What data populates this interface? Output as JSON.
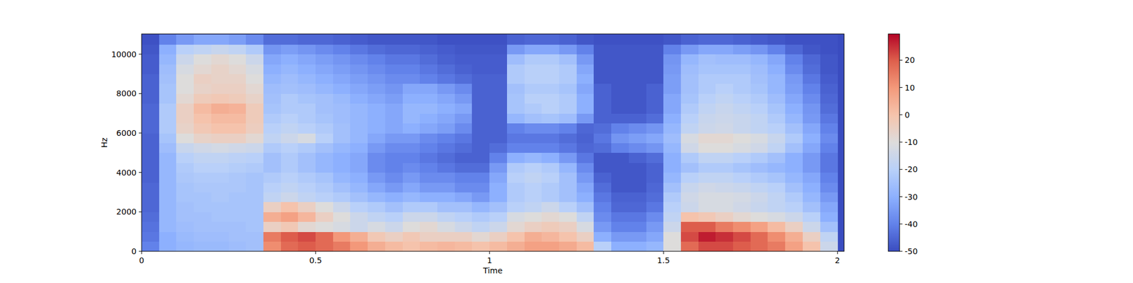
{
  "chart_data": {
    "type": "heatmap",
    "x_label": "Time",
    "y_label": "Hz",
    "x": [
      0.025,
      0.075,
      0.125,
      0.175,
      0.225,
      0.275,
      0.325,
      0.375,
      0.425,
      0.475,
      0.525,
      0.575,
      0.625,
      0.675,
      0.725,
      0.775,
      0.825,
      0.875,
      0.925,
      0.975,
      1.025,
      1.075,
      1.125,
      1.175,
      1.225,
      1.275,
      1.325,
      1.375,
      1.425,
      1.475,
      1.525,
      1.575,
      1.625,
      1.675,
      1.725,
      1.775,
      1.825,
      1.875,
      1.925,
      1.975
    ],
    "y": [
      250,
      750,
      1250,
      1750,
      2250,
      2750,
      3250,
      3750,
      4250,
      4750,
      5250,
      5750,
      6250,
      6750,
      7250,
      7750,
      8250,
      8750,
      9250,
      9750,
      10250,
      10750
    ],
    "values": [
      [
        -40,
        -30,
        -28,
        -27,
        -27,
        -26,
        -25,
        12,
        18,
        20,
        18,
        15,
        10,
        5,
        2,
        0,
        2,
        3,
        2,
        0,
        2,
        5,
        8,
        8,
        6,
        2,
        -20,
        -30,
        -30,
        -28,
        -10,
        18,
        22,
        22,
        20,
        18,
        15,
        8,
        0,
        -15
      ],
      [
        -42,
        -30,
        -27,
        -26,
        -26,
        -25,
        -25,
        15,
        20,
        22,
        18,
        10,
        5,
        -2,
        -5,
        -2,
        -5,
        -5,
        -5,
        -8,
        -5,
        0,
        5,
        3,
        0,
        -5,
        -30,
        -35,
        -35,
        -32,
        -10,
        22,
        27,
        25,
        22,
        18,
        12,
        5,
        -5,
        -18
      ],
      [
        -43,
        -28,
        -26,
        -25,
        -25,
        -25,
        -24,
        -5,
        -2,
        -8,
        -10,
        -12,
        -15,
        -12,
        -15,
        -10,
        -8,
        -12,
        -15,
        -18,
        -15,
        -8,
        -5,
        -3,
        -5,
        -12,
        -35,
        -40,
        -40,
        -35,
        -15,
        20,
        20,
        15,
        12,
        8,
        2,
        -5,
        -15,
        -25
      ],
      [
        -44,
        -28,
        -25,
        -25,
        -24,
        -24,
        -24,
        5,
        8,
        3,
        -5,
        -10,
        -15,
        -18,
        -20,
        -15,
        -15,
        -18,
        -20,
        -22,
        -20,
        -12,
        -10,
        -8,
        -10,
        -18,
        -38,
        -42,
        -42,
        -38,
        -18,
        0,
        -2,
        -5,
        -8,
        -10,
        -12,
        -15,
        -20,
        -30
      ],
      [
        -45,
        -28,
        -25,
        -24,
        -24,
        -24,
        -24,
        -5,
        0,
        -5,
        -10,
        -15,
        -20,
        -22,
        -25,
        -22,
        -22,
        -25,
        -25,
        -28,
        -25,
        -20,
        -18,
        -15,
        -20,
        -25,
        -40,
        -45,
        -45,
        -42,
        -20,
        -15,
        -12,
        -12,
        -14,
        -16,
        -18,
        -20,
        -25,
        -32
      ],
      [
        -45,
        -28,
        -24,
        -24,
        -23,
        -24,
        -24,
        -18,
        -15,
        -18,
        -20,
        -22,
        -25,
        -28,
        -30,
        -28,
        -30,
        -30,
        -32,
        -35,
        -30,
        -22,
        -20,
        -22,
        -25,
        -30,
        -42,
        -46,
        -46,
        -44,
        -22,
        -14,
        -12,
        -12,
        -13,
        -15,
        -18,
        -22,
        -28,
        -35
      ],
      [
        -45,
        -28,
        -24,
        -23,
        -23,
        -23,
        -24,
        -20,
        -18,
        -20,
        -22,
        -25,
        -28,
        -32,
        -35,
        -32,
        -35,
        -35,
        -38,
        -38,
        -30,
        -22,
        -20,
        -22,
        -25,
        -32,
        -44,
        -48,
        -48,
        -45,
        -25,
        -16,
        -14,
        -15,
        -16,
        -18,
        -20,
        -25,
        -30,
        -38
      ],
      [
        -46,
        -28,
        -23,
        -22,
        -22,
        -23,
        -24,
        -22,
        -20,
        -22,
        -24,
        -28,
        -30,
        -35,
        -38,
        -35,
        -38,
        -38,
        -40,
        -40,
        -32,
        -20,
        -18,
        -20,
        -25,
        -35,
        -46,
        -48,
        -48,
        -46,
        -28,
        -20,
        -18,
        -18,
        -20,
        -22,
        -24,
        -28,
        -32,
        -40
      ],
      [
        -46,
        -28,
        -22,
        -20,
        -20,
        -21,
        -22,
        -25,
        -22,
        -25,
        -28,
        -30,
        -32,
        -38,
        -40,
        -38,
        -40,
        -42,
        -44,
        -44,
        -35,
        -22,
        -20,
        -22,
        -28,
        -38,
        -48,
        -48,
        -48,
        -46,
        -30,
        -25,
        -22,
        -22,
        -24,
        -26,
        -28,
        -30,
        -35,
        -42
      ],
      [
        -46,
        -28,
        -20,
        -18,
        -18,
        -19,
        -20,
        -25,
        -22,
        -25,
        -28,
        -30,
        -32,
        -38,
        -40,
        -40,
        -42,
        -44,
        -46,
        -46,
        -40,
        -30,
        -28,
        -30,
        -35,
        -42,
        -48,
        -48,
        -46,
        -44,
        -30,
        -22,
        -18,
        -18,
        -20,
        -22,
        -25,
        -30,
        -35,
        -42
      ],
      [
        -46,
        -26,
        -16,
        -14,
        -13,
        -14,
        -15,
        -22,
        -20,
        -22,
        -25,
        -28,
        -30,
        -35,
        -38,
        -38,
        -40,
        -42,
        -44,
        -46,
        -44,
        -40,
        -40,
        -40,
        -42,
        -45,
        -44,
        -40,
        -38,
        -36,
        -28,
        -14,
        -10,
        -10,
        -12,
        -14,
        -18,
        -25,
        -32,
        -40
      ],
      [
        -46,
        -24,
        -10,
        -6,
        -5,
        -5,
        -8,
        -18,
        -15,
        -12,
        -20,
        -25,
        -28,
        -32,
        -35,
        -35,
        -38,
        -40,
        -42,
        -46,
        -46,
        -42,
        -42,
        -42,
        -44,
        -46,
        -42,
        -36,
        -34,
        -32,
        -26,
        -12,
        -8,
        -8,
        -10,
        -12,
        -16,
        -22,
        -30,
        -38
      ],
      [
        -45,
        -22,
        -6,
        -2,
        0,
        0,
        -4,
        -20,
        -18,
        -20,
        -22,
        -25,
        -28,
        -30,
        -32,
        -30,
        -32,
        -34,
        -38,
        -46,
        -46,
        -40,
        -38,
        -38,
        -40,
        -45,
        -44,
        -40,
        -38,
        -36,
        -28,
        -18,
        -15,
        -14,
        -16,
        -18,
        -20,
        -25,
        -32,
        -40
      ],
      [
        -45,
        -22,
        -5,
        0,
        2,
        2,
        -3,
        -22,
        -20,
        -22,
        -24,
        -26,
        -28,
        -30,
        -32,
        -28,
        -30,
        -32,
        -35,
        -46,
        -46,
        -28,
        -25,
        -24,
        -26,
        -35,
        -46,
        -46,
        -46,
        -44,
        -30,
        -20,
        -16,
        -15,
        -16,
        -18,
        -22,
        -28,
        -35,
        -42
      ],
      [
        -45,
        -22,
        -5,
        2,
        5,
        4,
        -3,
        -24,
        -22,
        -22,
        -25,
        -26,
        -28,
        -30,
        -32,
        -28,
        -28,
        -30,
        -32,
        -46,
        -46,
        -24,
        -22,
        -20,
        -22,
        -30,
        -46,
        -48,
        -48,
        -46,
        -32,
        -22,
        -18,
        -16,
        -18,
        -20,
        -24,
        -30,
        -36,
        -44
      ],
      [
        -46,
        -24,
        -8,
        -3,
        -2,
        -3,
        -6,
        -25,
        -22,
        -24,
        -25,
        -27,
        -30,
        -32,
        -34,
        -30,
        -30,
        -32,
        -35,
        -46,
        -46,
        -24,
        -20,
        -20,
        -22,
        -30,
        -46,
        -48,
        -48,
        -46,
        -32,
        -24,
        -20,
        -18,
        -20,
        -22,
        -26,
        -32,
        -38,
        -45
      ],
      [
        -46,
        -24,
        -10,
        -6,
        -5,
        -5,
        -8,
        -26,
        -25,
        -26,
        -28,
        -30,
        -32,
        -34,
        -36,
        -32,
        -32,
        -35,
        -38,
        -46,
        -46,
        -25,
        -22,
        -22,
        -24,
        -32,
        -46,
        -48,
        -48,
        -46,
        -34,
        -25,
        -22,
        -20,
        -22,
        -24,
        -28,
        -34,
        -40,
        -46
      ],
      [
        -46,
        -25,
        -10,
        -5,
        -6,
        -6,
        -10,
        -28,
        -26,
        -28,
        -30,
        -32,
        -34,
        -36,
        -38,
        -38,
        -40,
        -42,
        -44,
        -46,
        -46,
        -22,
        -20,
        -20,
        -22,
        -30,
        -48,
        -48,
        -48,
        -48,
        -34,
        -25,
        -22,
        -22,
        -22,
        -25,
        -28,
        -35,
        -42,
        -47
      ],
      [
        -47,
        -26,
        -12,
        -8,
        -6,
        -8,
        -12,
        -30,
        -28,
        -30,
        -32,
        -34,
        -36,
        -38,
        -40,
        -40,
        -42,
        -44,
        -46,
        -47,
        -47,
        -22,
        -20,
        -20,
        -22,
        -32,
        -48,
        -48,
        -48,
        -48,
        -35,
        -26,
        -24,
        -24,
        -24,
        -26,
        -30,
        -38,
        -44,
        -48
      ],
      [
        -47,
        -28,
        -15,
        -10,
        -8,
        -10,
        -15,
        -32,
        -30,
        -32,
        -34,
        -36,
        -38,
        -40,
        -42,
        -42,
        -44,
        -46,
        -47,
        -47,
        -47,
        -26,
        -22,
        -22,
        -25,
        -35,
        -48,
        -48,
        -48,
        -48,
        -36,
        -28,
        -25,
        -26,
        -26,
        -28,
        -32,
        -40,
        -45,
        -48
      ],
      [
        -48,
        -30,
        -20,
        -18,
        -16,
        -18,
        -22,
        -36,
        -34,
        -36,
        -38,
        -40,
        -42,
        -44,
        -45,
        -45,
        -46,
        -47,
        -48,
        -48,
        -48,
        -35,
        -32,
        -32,
        -35,
        -40,
        -48,
        -48,
        -48,
        -48,
        -40,
        -35,
        -32,
        -32,
        -34,
        -36,
        -40,
        -45,
        -48,
        -49
      ],
      [
        -49,
        -40,
        -35,
        -32,
        -32,
        -34,
        -38,
        -44,
        -44,
        -45,
        -45,
        -46,
        -47,
        -48,
        -48,
        -48,
        -48,
        -49,
        -49,
        -49,
        -49,
        -46,
        -45,
        -45,
        -46,
        -48,
        -49,
        -49,
        -49,
        -49,
        -48,
        -46,
        -45,
        -45,
        -46,
        -47,
        -48,
        -49,
        -49,
        -49
      ]
    ],
    "xlim": [
      0,
      2.019
    ],
    "ylim": [
      0,
      11025
    ],
    "xticks": [
      0,
      0.5,
      1,
      1.5,
      2
    ],
    "yticks": [
      0,
      2000,
      4000,
      6000,
      8000,
      10000
    ],
    "clim": [
      -50,
      29.6
    ],
    "cticks": [
      -50,
      -40,
      -30,
      -20,
      -10,
      0,
      10,
      20
    ]
  }
}
